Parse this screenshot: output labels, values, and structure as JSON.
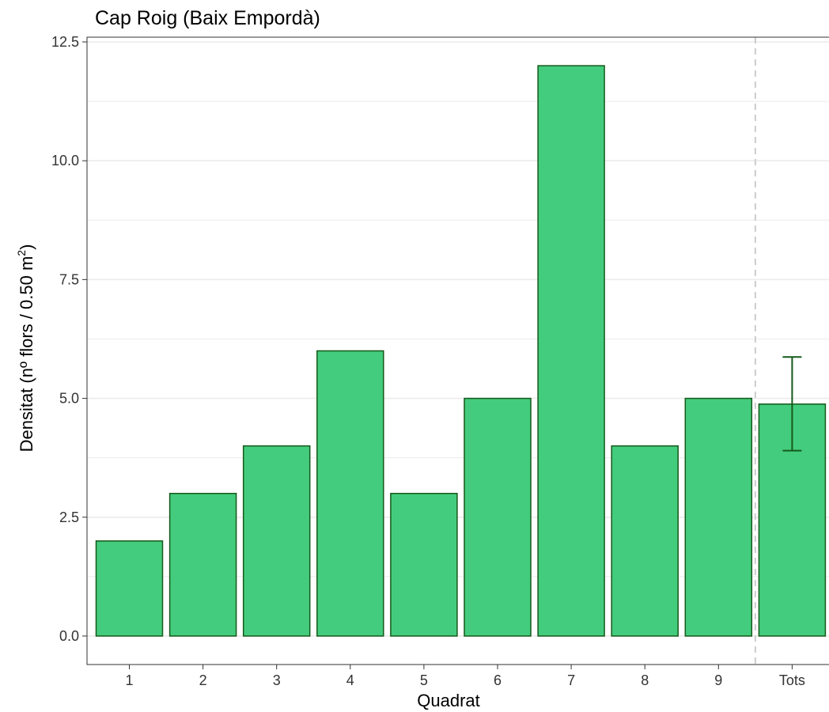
{
  "chart_data": {
    "type": "bar",
    "title": "Cap Roig (Baix Empordà)",
    "xlabel": "Quadrat",
    "ylabel": {
      "main": "Densitat (nº flors / 0.50 m",
      "sup": "2",
      "close": ")"
    },
    "categories": [
      "1",
      "2",
      "3",
      "4",
      "5",
      "6",
      "7",
      "8",
      "9",
      "Tots"
    ],
    "values": [
      2,
      3,
      4,
      6,
      3,
      5,
      12,
      4,
      5,
      4.88
    ],
    "error_bar": {
      "category": "Tots",
      "center": 4.88,
      "lower": 3.9,
      "upper": 5.87
    },
    "yticks": [
      "0.0",
      "2.5",
      "5.0",
      "7.5",
      "10.0",
      "12.5"
    ],
    "ylim": [
      -0.6,
      12.6
    ],
    "grid": true,
    "separator": "dashed vertical line between 9 and Tots",
    "colors": {
      "bar_fill": "#44CC7E",
      "bar_stroke": "#155A1A",
      "error_bar": "#155A1A",
      "grid": "#EBEBEB",
      "separator": "#CCCCCC",
      "panel_border": "#333333"
    }
  }
}
